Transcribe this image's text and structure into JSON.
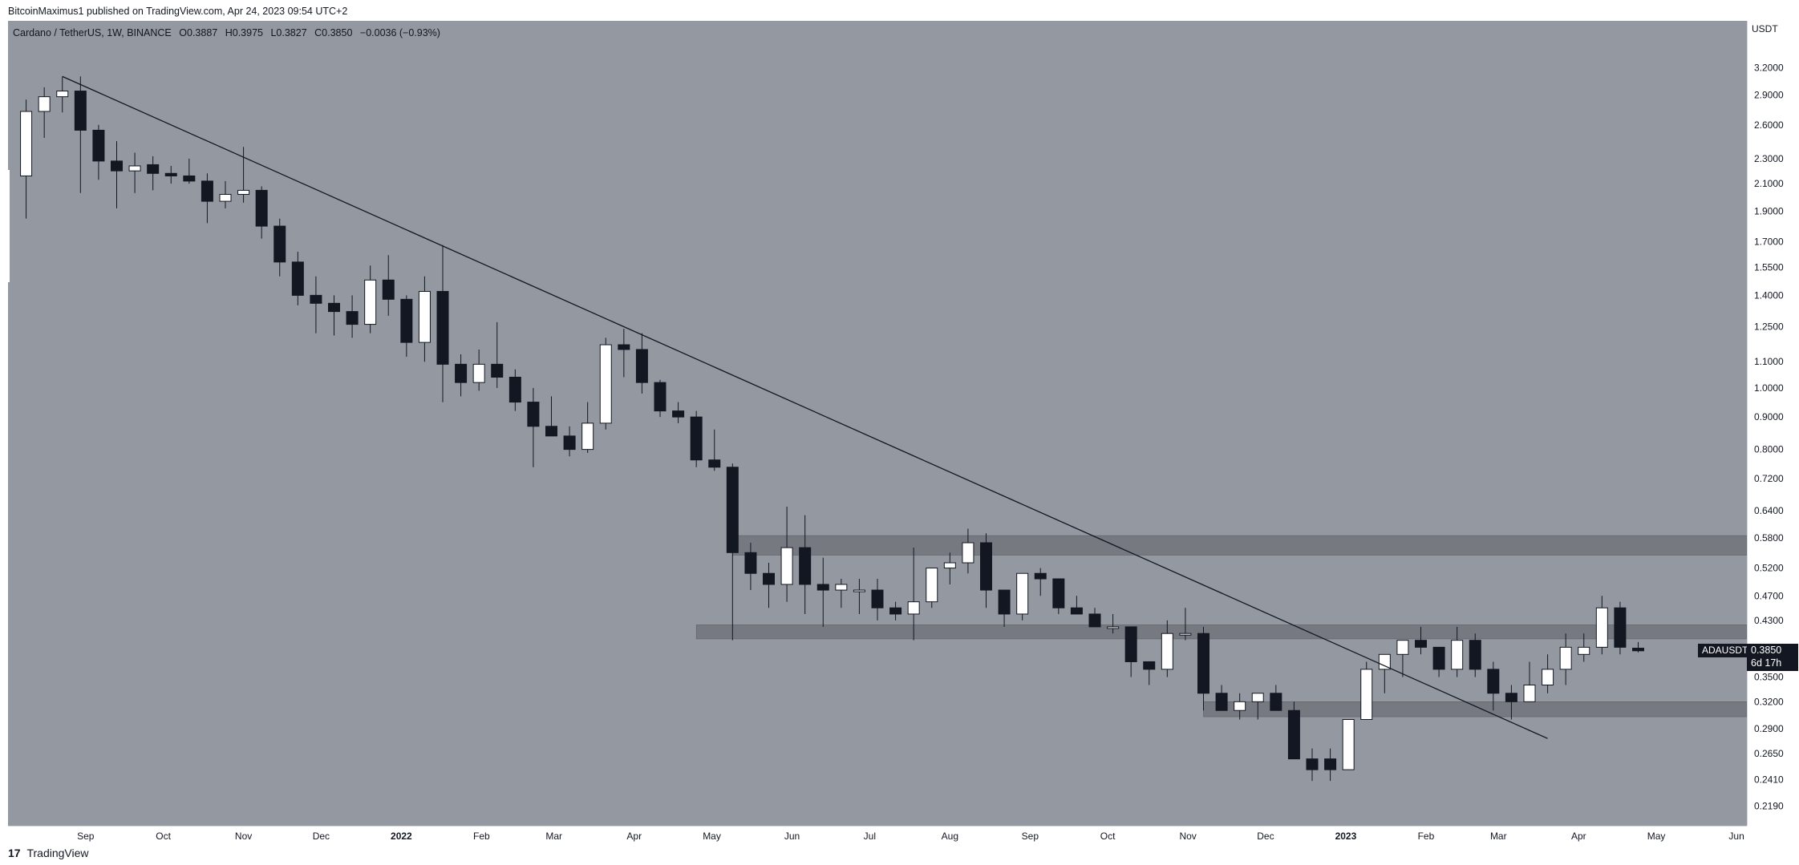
{
  "header": {
    "published_text": "BitcoinMaximus1 published on TradingView.com, Apr 24, 2023 09:54 UTC+2"
  },
  "legend": {
    "symbol": "Cardano / TetherUS, 1W, BINANCE",
    "o_label": "O",
    "o_value": "0.3887",
    "h_label": "H",
    "h_value": "0.3975",
    "l_label": "L",
    "l_value": "0.3827",
    "c_label": "C",
    "c_value": "0.3850",
    "change": "−0.0036 (−0.93%)"
  },
  "price_axis": {
    "currency": "USDT",
    "labels": [
      "3.2000",
      "2.9000",
      "2.6000",
      "2.3000",
      "2.1000",
      "1.9000",
      "1.7000",
      "1.5500",
      "1.4000",
      "1.2500",
      "1.1000",
      "1.0000",
      "0.9000",
      "0.8000",
      "0.7200",
      "0.6400",
      "0.5800",
      "0.5200",
      "0.4700",
      "0.4300",
      "0.3850",
      "0.3500",
      "0.3200",
      "0.2900",
      "0.2650",
      "0.2410",
      "0.2190"
    ],
    "current_price": "0.3850",
    "countdown": "6d 17h",
    "symbol_tag": "ADAUSDT"
  },
  "time_axis": {
    "labels": [
      "Sep",
      "Oct",
      "Nov",
      "Dec",
      "2022",
      "Feb",
      "Mar",
      "Apr",
      "May",
      "Jun",
      "Jul",
      "Aug",
      "Sep",
      "Oct",
      "Nov",
      "Dec",
      "2023",
      "Feb",
      "Mar",
      "Apr",
      "May",
      "Jun"
    ]
  },
  "footer": {
    "brand": "TradingView",
    "logo_glyph": "17"
  },
  "colors": {
    "background": "#9498a1",
    "up_candle": "#ffffff",
    "down_candle": "#131722",
    "zone": "#5f6168",
    "trendline": "#131722"
  },
  "chart_data": {
    "type": "candlestick",
    "title": "Cardano / TetherUS, 1W, BINANCE",
    "y_scale": "log",
    "ylim": [
      0.21,
      3.6
    ],
    "x_range": [
      "2021-08-02",
      "2023-06-05"
    ],
    "interval": "1W",
    "candles": [
      {
        "t": "2021-08-09",
        "o": 2.16,
        "h": 2.85,
        "l": 1.85,
        "c": 2.73
      },
      {
        "t": "2021-08-16",
        "o": 2.73,
        "h": 2.98,
        "l": 2.48,
        "c": 2.88
      },
      {
        "t": "2021-08-23",
        "o": 2.88,
        "h": 3.1,
        "l": 2.72,
        "c": 2.94
      },
      {
        "t": "2021-08-30",
        "o": 2.94,
        "h": 3.1,
        "l": 2.03,
        "c": 2.55
      },
      {
        "t": "2021-09-06",
        "o": 2.55,
        "h": 2.6,
        "l": 2.13,
        "c": 2.28
      },
      {
        "t": "2021-09-13",
        "o": 2.28,
        "h": 2.45,
        "l": 1.92,
        "c": 2.2
      },
      {
        "t": "2021-09-20",
        "o": 2.2,
        "h": 2.35,
        "l": 2.03,
        "c": 2.24
      },
      {
        "t": "2021-09-27",
        "o": 2.25,
        "h": 2.32,
        "l": 2.05,
        "c": 2.18
      },
      {
        "t": "2021-10-04",
        "o": 2.18,
        "h": 2.24,
        "l": 2.1,
        "c": 2.16
      },
      {
        "t": "2021-10-11",
        "o": 2.16,
        "h": 2.3,
        "l": 2.1,
        "c": 2.12
      },
      {
        "t": "2021-10-18",
        "o": 2.12,
        "h": 2.18,
        "l": 1.82,
        "c": 1.97
      },
      {
        "t": "2021-10-25",
        "o": 1.97,
        "h": 2.12,
        "l": 1.92,
        "c": 2.02
      },
      {
        "t": "2021-11-01",
        "o": 2.02,
        "h": 2.4,
        "l": 1.96,
        "c": 2.05
      },
      {
        "t": "2021-11-08",
        "o": 2.05,
        "h": 2.08,
        "l": 1.72,
        "c": 1.8
      },
      {
        "t": "2021-11-15",
        "o": 1.8,
        "h": 1.85,
        "l": 1.5,
        "c": 1.58
      },
      {
        "t": "2021-11-22",
        "o": 1.58,
        "h": 1.64,
        "l": 1.35,
        "c": 1.4
      },
      {
        "t": "2021-11-29",
        "o": 1.4,
        "h": 1.5,
        "l": 1.22,
        "c": 1.36
      },
      {
        "t": "2021-12-06",
        "o": 1.36,
        "h": 1.4,
        "l": 1.21,
        "c": 1.32
      },
      {
        "t": "2021-12-13",
        "o": 1.32,
        "h": 1.4,
        "l": 1.2,
        "c": 1.26
      },
      {
        "t": "2021-12-20",
        "o": 1.26,
        "h": 1.56,
        "l": 1.22,
        "c": 1.48
      },
      {
        "t": "2021-12-27",
        "o": 1.48,
        "h": 1.62,
        "l": 1.3,
        "c": 1.38
      },
      {
        "t": "2022-01-03",
        "o": 1.38,
        "h": 1.4,
        "l": 1.12,
        "c": 1.18
      },
      {
        "t": "2022-01-10",
        "o": 1.18,
        "h": 1.5,
        "l": 1.1,
        "c": 1.42
      },
      {
        "t": "2022-01-17",
        "o": 1.42,
        "h": 1.68,
        "l": 0.95,
        "c": 1.09
      },
      {
        "t": "2022-01-24",
        "o": 1.09,
        "h": 1.13,
        "l": 0.97,
        "c": 1.02
      },
      {
        "t": "2022-01-31",
        "o": 1.02,
        "h": 1.15,
        "l": 0.99,
        "c": 1.09
      },
      {
        "t": "2022-02-07",
        "o": 1.09,
        "h": 1.27,
        "l": 1.0,
        "c": 1.04
      },
      {
        "t": "2022-02-14",
        "o": 1.04,
        "h": 1.07,
        "l": 0.92,
        "c": 0.95
      },
      {
        "t": "2022-02-21",
        "o": 0.95,
        "h": 1.0,
        "l": 0.75,
        "c": 0.87
      },
      {
        "t": "2022-02-28",
        "o": 0.87,
        "h": 0.97,
        "l": 0.85,
        "c": 0.84
      },
      {
        "t": "2022-03-07",
        "o": 0.84,
        "h": 0.87,
        "l": 0.78,
        "c": 0.8
      },
      {
        "t": "2022-03-14",
        "o": 0.8,
        "h": 0.95,
        "l": 0.79,
        "c": 0.88
      },
      {
        "t": "2022-03-21",
        "o": 0.88,
        "h": 1.2,
        "l": 0.86,
        "c": 1.17
      },
      {
        "t": "2022-03-28",
        "o": 1.17,
        "h": 1.24,
        "l": 1.04,
        "c": 1.15
      },
      {
        "t": "2022-04-04",
        "o": 1.15,
        "h": 1.22,
        "l": 0.98,
        "c": 1.02
      },
      {
        "t": "2022-04-11",
        "o": 1.02,
        "h": 1.03,
        "l": 0.9,
        "c": 0.92
      },
      {
        "t": "2022-04-18",
        "o": 0.92,
        "h": 0.95,
        "l": 0.88,
        "c": 0.9
      },
      {
        "t": "2022-04-25",
        "o": 0.9,
        "h": 0.92,
        "l": 0.75,
        "c": 0.77
      },
      {
        "t": "2022-05-02",
        "o": 0.77,
        "h": 0.86,
        "l": 0.74,
        "c": 0.75
      },
      {
        "t": "2022-05-09",
        "o": 0.75,
        "h": 0.76,
        "l": 0.4,
        "c": 0.55
      },
      {
        "t": "2022-05-16",
        "o": 0.55,
        "h": 0.57,
        "l": 0.48,
        "c": 0.51
      },
      {
        "t": "2022-05-23",
        "o": 0.51,
        "h": 0.53,
        "l": 0.45,
        "c": 0.49
      },
      {
        "t": "2022-05-30",
        "o": 0.49,
        "h": 0.65,
        "l": 0.46,
        "c": 0.56
      },
      {
        "t": "2022-06-06",
        "o": 0.56,
        "h": 0.63,
        "l": 0.44,
        "c": 0.49
      },
      {
        "t": "2022-06-13",
        "o": 0.49,
        "h": 0.54,
        "l": 0.42,
        "c": 0.48
      },
      {
        "t": "2022-06-20",
        "o": 0.48,
        "h": 0.5,
        "l": 0.45,
        "c": 0.49
      },
      {
        "t": "2022-06-27",
        "o": 0.48,
        "h": 0.5,
        "l": 0.44,
        "c": 0.48
      },
      {
        "t": "2022-07-04",
        "o": 0.48,
        "h": 0.5,
        "l": 0.43,
        "c": 0.45
      },
      {
        "t": "2022-07-11",
        "o": 0.45,
        "h": 0.46,
        "l": 0.43,
        "c": 0.44
      },
      {
        "t": "2022-07-18",
        "o": 0.44,
        "h": 0.56,
        "l": 0.4,
        "c": 0.46
      },
      {
        "t": "2022-07-25",
        "o": 0.46,
        "h": 0.52,
        "l": 0.45,
        "c": 0.52
      },
      {
        "t": "2022-08-01",
        "o": 0.52,
        "h": 0.55,
        "l": 0.49,
        "c": 0.53
      },
      {
        "t": "2022-08-08",
        "o": 0.53,
        "h": 0.6,
        "l": 0.51,
        "c": 0.57
      },
      {
        "t": "2022-08-15",
        "o": 0.57,
        "h": 0.59,
        "l": 0.45,
        "c": 0.48
      },
      {
        "t": "2022-08-22",
        "o": 0.48,
        "h": 0.48,
        "l": 0.42,
        "c": 0.44
      },
      {
        "t": "2022-08-29",
        "o": 0.44,
        "h": 0.5,
        "l": 0.43,
        "c": 0.51
      },
      {
        "t": "2022-09-05",
        "o": 0.51,
        "h": 0.52,
        "l": 0.47,
        "c": 0.5
      },
      {
        "t": "2022-09-12",
        "o": 0.5,
        "h": 0.5,
        "l": 0.44,
        "c": 0.45
      },
      {
        "t": "2022-09-19",
        "o": 0.45,
        "h": 0.47,
        "l": 0.44,
        "c": 0.44
      },
      {
        "t": "2022-09-26",
        "o": 0.44,
        "h": 0.45,
        "l": 0.42,
        "c": 0.42
      },
      {
        "t": "2022-10-03",
        "o": 0.42,
        "h": 0.44,
        "l": 0.41,
        "c": 0.42
      },
      {
        "t": "2022-10-10",
        "o": 0.42,
        "h": 0.42,
        "l": 0.35,
        "c": 0.37
      },
      {
        "t": "2022-10-17",
        "o": 0.37,
        "h": 0.37,
        "l": 0.34,
        "c": 0.36
      },
      {
        "t": "2022-10-24",
        "o": 0.36,
        "h": 0.43,
        "l": 0.35,
        "c": 0.41
      },
      {
        "t": "2022-10-31",
        "o": 0.41,
        "h": 0.45,
        "l": 0.4,
        "c": 0.41
      },
      {
        "t": "2022-11-07",
        "o": 0.41,
        "h": 0.42,
        "l": 0.31,
        "c": 0.33
      },
      {
        "t": "2022-11-14",
        "o": 0.33,
        "h": 0.34,
        "l": 0.31,
        "c": 0.31
      },
      {
        "t": "2022-11-21",
        "o": 0.31,
        "h": 0.33,
        "l": 0.3,
        "c": 0.32
      },
      {
        "t": "2022-11-28",
        "o": 0.32,
        "h": 0.33,
        "l": 0.3,
        "c": 0.33
      },
      {
        "t": "2022-12-05",
        "o": 0.33,
        "h": 0.34,
        "l": 0.31,
        "c": 0.31
      },
      {
        "t": "2022-12-12",
        "o": 0.31,
        "h": 0.32,
        "l": 0.26,
        "c": 0.26
      },
      {
        "t": "2022-12-19",
        "o": 0.26,
        "h": 0.27,
        "l": 0.24,
        "c": 0.25
      },
      {
        "t": "2022-12-26",
        "o": 0.26,
        "h": 0.27,
        "l": 0.24,
        "c": 0.25
      },
      {
        "t": "2023-01-02",
        "o": 0.25,
        "h": 0.3,
        "l": 0.25,
        "c": 0.3
      },
      {
        "t": "2023-01-09",
        "o": 0.3,
        "h": 0.37,
        "l": 0.3,
        "c": 0.36
      },
      {
        "t": "2023-01-16",
        "o": 0.36,
        "h": 0.38,
        "l": 0.33,
        "c": 0.38
      },
      {
        "t": "2023-01-23",
        "o": 0.38,
        "h": 0.4,
        "l": 0.35,
        "c": 0.4
      },
      {
        "t": "2023-01-30",
        "o": 0.4,
        "h": 0.42,
        "l": 0.38,
        "c": 0.39
      },
      {
        "t": "2023-02-06",
        "o": 0.39,
        "h": 0.39,
        "l": 0.35,
        "c": 0.36
      },
      {
        "t": "2023-02-13",
        "o": 0.36,
        "h": 0.42,
        "l": 0.35,
        "c": 0.4
      },
      {
        "t": "2023-02-20",
        "o": 0.4,
        "h": 0.41,
        "l": 0.35,
        "c": 0.36
      },
      {
        "t": "2023-02-27",
        "o": 0.36,
        "h": 0.37,
        "l": 0.31,
        "c": 0.33
      },
      {
        "t": "2023-03-06",
        "o": 0.33,
        "h": 0.34,
        "l": 0.3,
        "c": 0.32
      },
      {
        "t": "2023-03-13",
        "o": 0.32,
        "h": 0.37,
        "l": 0.32,
        "c": 0.34
      },
      {
        "t": "2023-03-20",
        "o": 0.34,
        "h": 0.38,
        "l": 0.33,
        "c": 0.36
      },
      {
        "t": "2023-03-27",
        "o": 0.36,
        "h": 0.41,
        "l": 0.34,
        "c": 0.39
      },
      {
        "t": "2023-04-03",
        "o": 0.38,
        "h": 0.41,
        "l": 0.37,
        "c": 0.39
      },
      {
        "t": "2023-04-10",
        "o": 0.39,
        "h": 0.47,
        "l": 0.38,
        "c": 0.45
      },
      {
        "t": "2023-04-17",
        "o": 0.45,
        "h": 0.46,
        "l": 0.38,
        "c": 0.39
      },
      {
        "t": "2023-04-24",
        "o": 0.3887,
        "h": 0.3975,
        "l": 0.3827,
        "c": 0.385
      }
    ],
    "trendlines": [
      {
        "from": {
          "t": "2021-08-23",
          "p": 3.1
        },
        "to": {
          "t": "2023-03-20",
          "p": 0.28
        }
      }
    ],
    "zones": [
      {
        "from_t": "2022-05-09",
        "to_t": "2023-06-05",
        "low": 0.545,
        "high": 0.585
      },
      {
        "from_t": "2022-04-25",
        "to_t": "2023-06-05",
        "low": 0.402,
        "high": 0.423
      },
      {
        "from_t": "2022-11-07",
        "to_t": "2023-06-05",
        "low": 0.303,
        "high": 0.32
      }
    ]
  }
}
